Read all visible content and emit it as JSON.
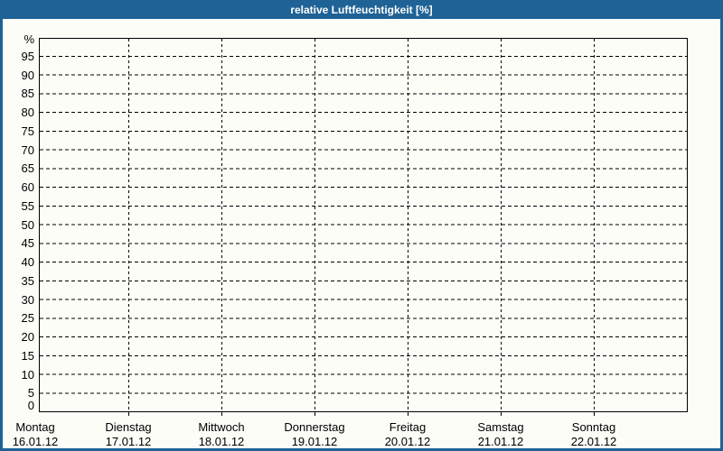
{
  "window_title": "relative Luftfeuchtigkeit [%]",
  "colors": {
    "accent_blue": "#1e6296",
    "background": "#fcfdf7",
    "grid_line": "#000000",
    "title_text": "#ffffff"
  },
  "chart_data": {
    "type": "line",
    "title": "relative Luftfeuchtigkeit [%]",
    "ylabel": "%",
    "ylim": [
      0,
      100
    ],
    "ytick_step": 5,
    "yticks": [
      0,
      5,
      10,
      15,
      20,
      25,
      30,
      35,
      40,
      45,
      50,
      55,
      60,
      65,
      70,
      75,
      80,
      85,
      90,
      95
    ],
    "grid": "dashed",
    "legend": "none",
    "x_categories": [
      "Montag 16.01.12",
      "Dienstag 17.01.12",
      "Mittwoch 18.01.12",
      "Donnerstag 19.01.12",
      "Freitag 20.01.12",
      "Samstag 21.01.12",
      "Sonntag 22.01.12"
    ],
    "days": [
      {
        "name": "Montag",
        "date": "16.01.12"
      },
      {
        "name": "Dienstag",
        "date": "17.01.12"
      },
      {
        "name": "Mittwoch",
        "date": "18.01.12"
      },
      {
        "name": "Donnerstag",
        "date": "19.01.12"
      },
      {
        "name": "Freitag",
        "date": "20.01.12"
      },
      {
        "name": "Samstag",
        "date": "21.01.12"
      },
      {
        "name": "Sonntag",
        "date": "22.01.12"
      }
    ],
    "series": []
  }
}
